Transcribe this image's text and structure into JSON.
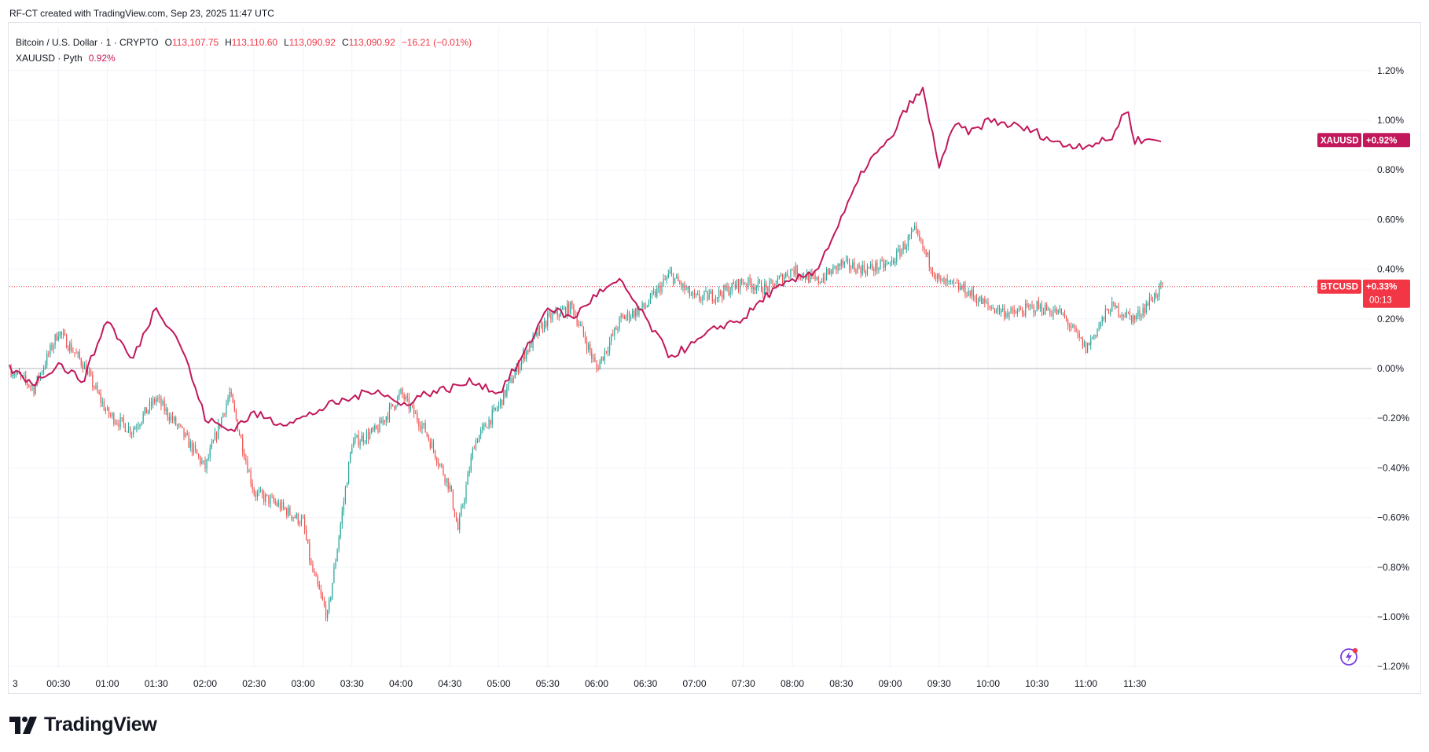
{
  "header": {
    "credit": "RF-CT created with TradingView.com, Sep 23, 2025 11:47 UTC"
  },
  "legend": {
    "main_symbol": "Bitcoin / U.S. Dollar · 1 · CRYPTO",
    "o_label": "O",
    "o_value": "113,107.75",
    "h_label": "H",
    "h_value": "113,110.60",
    "l_label": "L",
    "l_value": "113,090.92",
    "c_label": "C",
    "c_value": "113,090.92",
    "change": "−16.21 (−0.01%)",
    "compare_symbol": "XAUUSD · Pyth",
    "compare_value": "0.92%"
  },
  "badges": {
    "xau_label": "XAUUSD",
    "xau_value": "+0.92%",
    "btc_label": "BTCUSD",
    "btc_value": "+0.33%",
    "btc_countdown": "00:13"
  },
  "brand": {
    "name": "TradingView"
  },
  "colors": {
    "up": "#26a69a",
    "down": "#ef5350",
    "xau": "#c2185b",
    "grid": "#f0f3fa",
    "badge_btc": "#f23645"
  },
  "chart_data": {
    "type": "line",
    "ylabel": "%",
    "ylim": [
      -1.2,
      1.2
    ],
    "y_ticks": [
      "1.20%",
      "1.00%",
      "0.80%",
      "0.60%",
      "0.40%",
      "0.20%",
      "0.00%",
      "−0.20%",
      "−0.40%",
      "−0.60%",
      "−0.80%",
      "−1.00%",
      "−1.20%"
    ],
    "x_ticks": [
      "3",
      "00:30",
      "01:00",
      "01:30",
      "02:00",
      "02:30",
      "03:00",
      "03:30",
      "04:00",
      "04:30",
      "05:00",
      "05:30",
      "06:00",
      "06:30",
      "07:00",
      "07:30",
      "08:00",
      "08:30",
      "09:00",
      "09:30",
      "10:00",
      "10:30",
      "11:00",
      "11:30"
    ],
    "series": [
      {
        "name": "BTCUSD",
        "style": "candles",
        "x": [
          "00:00",
          "00:15",
          "00:30",
          "00:45",
          "01:00",
          "01:15",
          "01:30",
          "01:45",
          "02:00",
          "02:15",
          "02:30",
          "02:45",
          "03:00",
          "03:05",
          "03:15",
          "03:30",
          "03:45",
          "04:00",
          "04:15",
          "04:30",
          "04:35",
          "04:45",
          "05:00",
          "05:15",
          "05:30",
          "05:45",
          "06:00",
          "06:15",
          "06:30",
          "06:45",
          "07:00",
          "07:15",
          "07:30",
          "07:45",
          "08:00",
          "08:15",
          "08:30",
          "08:45",
          "09:00",
          "09:15",
          "09:30",
          "09:45",
          "10:00",
          "10:15",
          "10:30",
          "10:45",
          "11:00",
          "11:15",
          "11:30",
          "11:40",
          "11:47"
        ],
        "values": [
          0.0,
          -0.08,
          0.15,
          0.02,
          -0.18,
          -0.25,
          -0.12,
          -0.25,
          -0.4,
          -0.1,
          -0.5,
          -0.55,
          -0.62,
          -0.8,
          -1.0,
          -0.3,
          -0.25,
          -0.1,
          -0.25,
          -0.48,
          -0.65,
          -0.3,
          -0.15,
          0.05,
          0.2,
          0.25,
          0.0,
          0.2,
          0.25,
          0.38,
          0.28,
          0.3,
          0.35,
          0.32,
          0.4,
          0.35,
          0.42,
          0.4,
          0.42,
          0.55,
          0.35,
          0.32,
          0.25,
          0.22,
          0.25,
          0.22,
          0.08,
          0.25,
          0.2,
          0.28,
          0.33
        ]
      },
      {
        "name": "XAUUSD",
        "style": "line",
        "x": [
          "00:00",
          "00:15",
          "00:30",
          "00:45",
          "01:00",
          "01:15",
          "01:30",
          "01:45",
          "02:00",
          "02:15",
          "02:30",
          "02:45",
          "03:00",
          "03:15",
          "03:30",
          "03:45",
          "04:00",
          "04:15",
          "04:30",
          "04:45",
          "05:00",
          "05:15",
          "05:30",
          "05:45",
          "06:00",
          "06:15",
          "06:30",
          "06:45",
          "07:00",
          "07:15",
          "07:30",
          "07:45",
          "08:00",
          "08:15",
          "08:30",
          "08:45",
          "09:00",
          "09:10",
          "09:20",
          "09:30",
          "09:40",
          "09:50",
          "10:00",
          "10:15",
          "10:30",
          "10:45",
          "11:00",
          "11:15",
          "11:25",
          "11:30",
          "11:40",
          "11:47"
        ],
        "values": [
          0.0,
          -0.06,
          0.02,
          -0.05,
          0.2,
          0.03,
          0.25,
          0.1,
          -0.2,
          -0.25,
          -0.18,
          -0.22,
          -0.2,
          -0.15,
          -0.12,
          -0.08,
          -0.15,
          -0.1,
          -0.08,
          -0.05,
          -0.1,
          0.05,
          0.25,
          0.2,
          0.3,
          0.35,
          0.2,
          0.05,
          0.1,
          0.17,
          0.2,
          0.3,
          0.35,
          0.4,
          0.6,
          0.82,
          0.92,
          1.05,
          1.12,
          0.82,
          0.98,
          0.95,
          1.0,
          0.98,
          0.95,
          0.9,
          0.9,
          0.92,
          1.05,
          0.92,
          0.92,
          0.92
        ]
      }
    ]
  }
}
